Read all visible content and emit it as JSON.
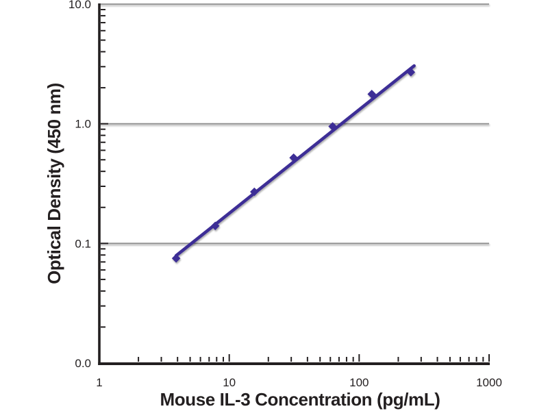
{
  "chart_data": {
    "type": "scatter",
    "title": "",
    "xlabel": "Mouse IL-3 Concentration (pg/mL)",
    "ylabel": "Optical Density (450 nm)",
    "x_scale": "log",
    "y_scale": "log",
    "xlim": [
      1,
      1000
    ],
    "ylim": [
      0.01,
      10
    ],
    "x_ticks": [
      {
        "value": 1,
        "label": "1"
      },
      {
        "value": 10,
        "label": "10"
      },
      {
        "value": 100,
        "label": "100"
      },
      {
        "value": 1000,
        "label": "1000"
      }
    ],
    "y_ticks": [
      {
        "value": 10,
        "label": "10.0"
      },
      {
        "value": 1,
        "label": "1.0"
      },
      {
        "value": 0.1,
        "label": "0.1"
      },
      {
        "value": 0.01,
        "label": "0.0"
      }
    ],
    "grid": {
      "horizontal_at": [
        10,
        1,
        0.1
      ],
      "vertical": false,
      "color": "#8f8f8f"
    },
    "axis_color": "#231f20",
    "series": [
      {
        "name": "mouse-il3-standard-curve",
        "marker": "diamond",
        "color": "#3e2d96",
        "points": [
          {
            "x": 3.9,
            "y": 0.075
          },
          {
            "x": 7.8,
            "y": 0.14
          },
          {
            "x": 15.6,
            "y": 0.27
          },
          {
            "x": 31.3,
            "y": 0.52
          },
          {
            "x": 62.5,
            "y": 0.95
          },
          {
            "x": 125,
            "y": 1.77
          },
          {
            "x": 250,
            "y": 2.7
          }
        ]
      }
    ],
    "trend_line": {
      "x1": 3.9,
      "y1": 0.079,
      "x2": 265,
      "y2": 3.05,
      "color": "#3e2d96"
    },
    "legend": {
      "visible": false
    }
  }
}
